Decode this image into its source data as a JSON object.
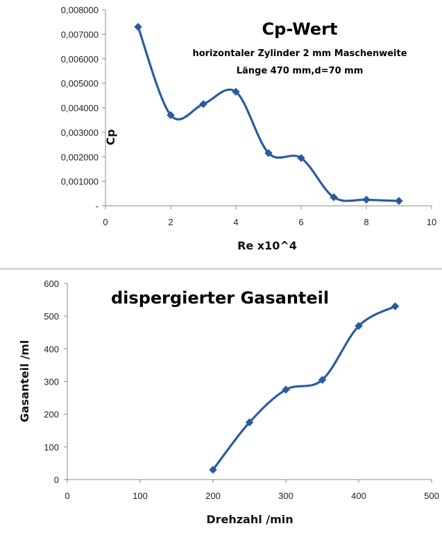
{
  "chart_data": [
    {
      "type": "line",
      "title": "Cp-Wert",
      "subtitle_lines": [
        "horizontaler Zylinder 2 mm Maschenweite",
        "Länge  470 mm,d=70 mm"
      ],
      "xlabel": "Re x10^4",
      "ylabel": "Cp",
      "xlim": [
        0,
        10
      ],
      "ylim": [
        0,
        0.008
      ],
      "x_ticks": [
        "0",
        "2",
        "4",
        "6",
        "8",
        "10"
      ],
      "y_ticks": [
        "-",
        "0,001000",
        "0,002000",
        "0,003000",
        "0,004000",
        "0,005000",
        "0,006000",
        "0,007000",
        "0,008000"
      ],
      "grid": false,
      "smooth": true,
      "series": [
        {
          "x": [
            1,
            2,
            3,
            4,
            5,
            6,
            7,
            8,
            9
          ],
          "values": [
            0.0073,
            0.0037,
            0.00415,
            0.00465,
            0.00215,
            0.00195,
            0.00035,
            0.00025,
            0.0002
          ]
        }
      ],
      "color": "#2a5aa3"
    },
    {
      "type": "line",
      "title": "dispergierter Gasanteil",
      "xlabel": "Drehzahl /min",
      "ylabel": "Gasanteil /ml",
      "xlim": [
        0,
        500
      ],
      "ylim": [
        0,
        600
      ],
      "x_ticks": [
        "0",
        "100",
        "200",
        "300",
        "400",
        "500"
      ],
      "y_ticks": [
        "0",
        "100",
        "200",
        "300",
        "400",
        "500",
        "600"
      ],
      "grid": false,
      "smooth": true,
      "series": [
        {
          "x": [
            200,
            250,
            300,
            350,
            400,
            450
          ],
          "values": [
            30,
            175,
            275,
            305,
            470,
            530
          ]
        }
      ],
      "color": "#2a5aa3"
    }
  ]
}
